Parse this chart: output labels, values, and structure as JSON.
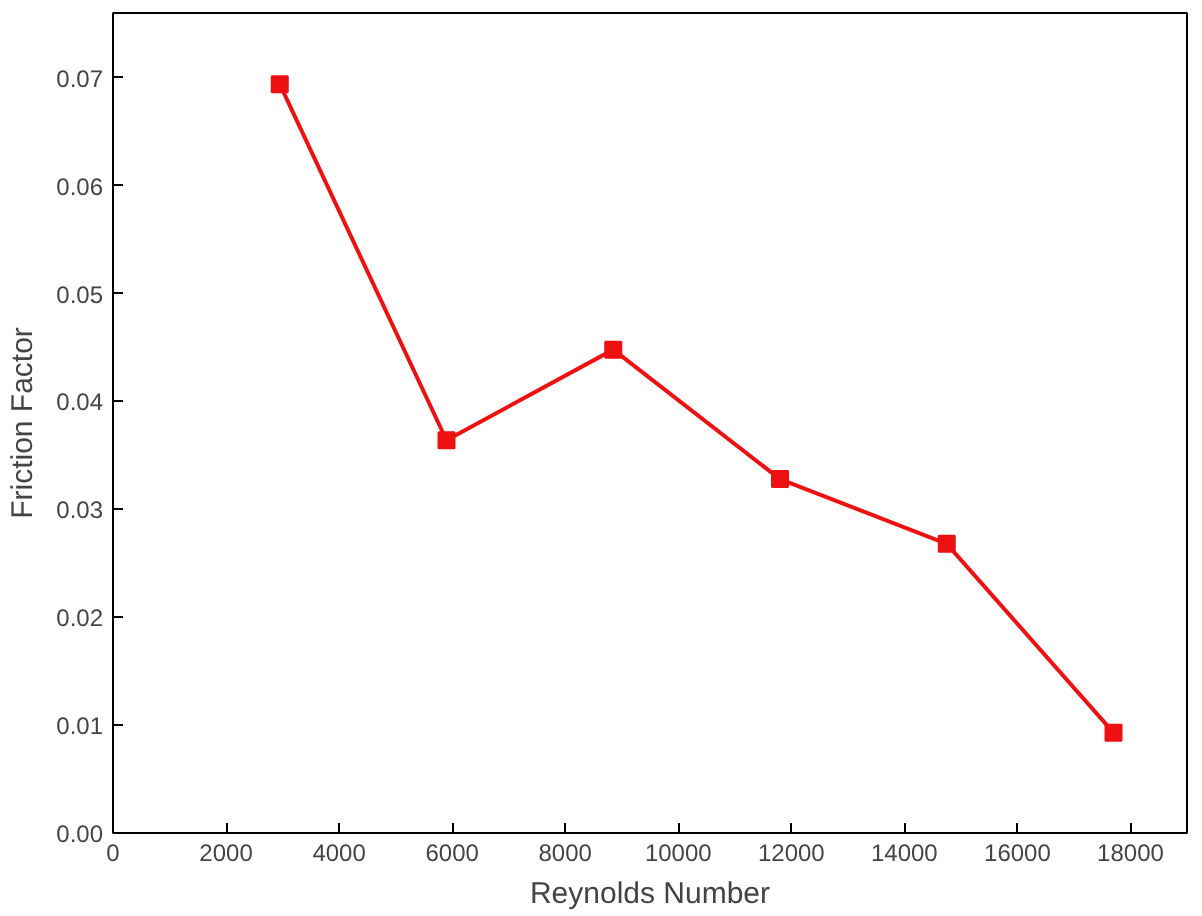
{
  "chart_data": {
    "type": "line",
    "xlabel": "Reynolds Number",
    "ylabel": "Friction Factor",
    "x": [
      2950,
      5900,
      8850,
      11800,
      14750,
      17700
    ],
    "series": [
      {
        "color": "#ee1111",
        "values": [
          0.0694,
          0.0364,
          0.0448,
          0.0328,
          0.0268,
          0.0093
        ]
      }
    ],
    "xlim": [
      0,
      19000
    ],
    "ylim": [
      0,
      0.076
    ],
    "xticks": [
      0,
      2000,
      4000,
      6000,
      8000,
      10000,
      12000,
      14000,
      16000,
      18000
    ],
    "yticks": [
      {
        "value": 0,
        "label": "0.00"
      },
      {
        "value": 0.01,
        "label": "0.01"
      },
      {
        "value": 0.02,
        "label": "0.02"
      },
      {
        "value": 0.03,
        "label": "0.03"
      },
      {
        "value": 0.04,
        "label": "0.04"
      },
      {
        "value": 0.05,
        "label": "0.05"
      },
      {
        "value": 0.06,
        "label": "0.06"
      },
      {
        "value": 0.07,
        "label": "0.07"
      }
    ],
    "marker": "square",
    "line_style": "solid",
    "grid": false
  }
}
